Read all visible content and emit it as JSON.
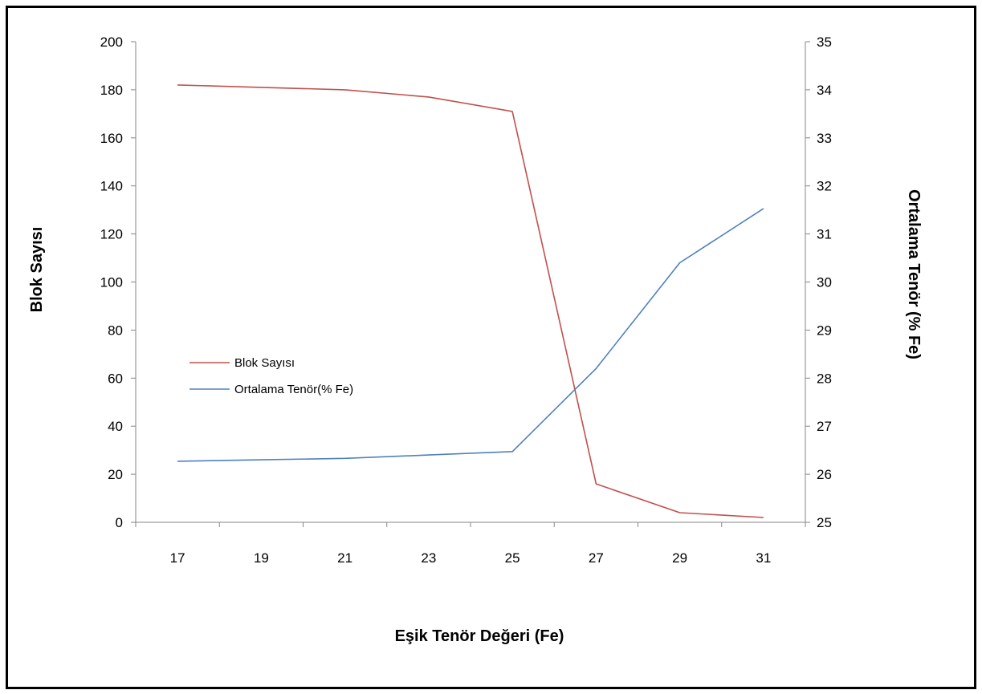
{
  "chart_data": {
    "type": "line",
    "title": "",
    "xlabel": "Eşik Tenör Değeri (Fe)",
    "ylabel": "Blok Sayısı",
    "y2label": "Ortalama Tenör (% Fe)",
    "x": [
      17,
      19,
      21,
      23,
      25,
      27,
      29,
      31
    ],
    "ylim": [
      0,
      200
    ],
    "y2lim": [
      25,
      35
    ],
    "yticks": [
      0,
      20,
      40,
      60,
      80,
      100,
      120,
      140,
      160,
      180,
      200
    ],
    "y2ticks": [
      25,
      26,
      27,
      28,
      29,
      30,
      31,
      32,
      33,
      34,
      35
    ],
    "grid": false,
    "legend_position": "left-middle",
    "series": [
      {
        "name": "Blok Sayısı",
        "axis": "left",
        "color": "#C0504D",
        "values": [
          182,
          181,
          180,
          177,
          171,
          16,
          4,
          2
        ]
      },
      {
        "name": "Ortalama Tenör(% Fe)",
        "axis": "right",
        "color": "#4F81BD",
        "values": [
          26.27,
          26.3,
          26.33,
          26.4,
          26.47,
          28.2,
          30.4,
          31.53
        ]
      }
    ]
  }
}
